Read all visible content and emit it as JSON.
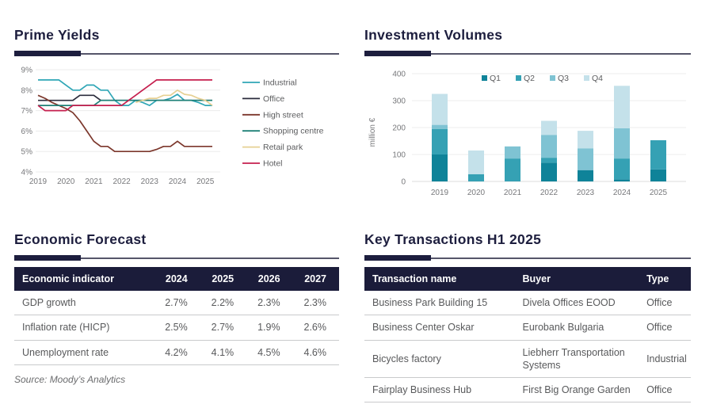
{
  "panels": {
    "prime_yields": {
      "title": "Prime Yields"
    },
    "investment_volumes": {
      "title": "Investment Volumes"
    },
    "economic_forecast": {
      "title": "Economic Forecast"
    },
    "key_transactions": {
      "title": "Key Transactions H1 2025"
    }
  },
  "chart_data": [
    {
      "id": "prime_yields",
      "type": "line",
      "title": "Prime Yields",
      "x_years": [
        "2019",
        "2020",
        "2021",
        "2022",
        "2023",
        "2024",
        "2025"
      ],
      "x_frequency": "quarterly",
      "ylim": [
        4,
        9
      ],
      "y_ticks": [
        "9%",
        "8%",
        "7%",
        "6%",
        "5%",
        "4%"
      ],
      "grid": true,
      "legend_position": "right",
      "series": [
        {
          "name": "Industrial",
          "color": "#2fa6b6",
          "values": [
            8.5,
            8.5,
            8.5,
            8.5,
            8.25,
            8.0,
            8.0,
            8.25,
            8.25,
            8.0,
            8.0,
            7.5,
            7.25,
            7.25,
            7.5,
            7.4,
            7.25,
            7.5,
            7.5,
            7.6,
            7.8,
            7.5,
            7.5,
            7.4,
            7.25,
            7.25
          ]
        },
        {
          "name": "Office",
          "color": "#2b2c3c",
          "values": [
            7.5,
            7.5,
            7.5,
            7.5,
            7.5,
            7.5,
            7.75,
            7.75,
            7.75,
            7.5,
            7.5,
            7.5,
            7.5,
            7.5,
            7.5,
            7.5,
            7.5,
            7.5,
            7.5,
            7.5,
            7.5,
            7.5,
            7.5,
            7.5,
            7.5,
            7.5
          ]
        },
        {
          "name": "High street",
          "color": "#7c372c",
          "values": [
            7.75,
            7.6,
            7.4,
            7.25,
            7.1,
            6.9,
            6.5,
            6.0,
            5.5,
            5.25,
            5.25,
            5.0,
            5.0,
            5.0,
            5.0,
            5.0,
            5.0,
            5.1,
            5.25,
            5.25,
            5.5,
            5.25,
            5.25,
            5.25,
            5.25,
            5.25
          ]
        },
        {
          "name": "Shopping centre",
          "color": "#1e8077",
          "values": [
            7.25,
            7.25,
            7.25,
            7.25,
            7.25,
            7.25,
            7.25,
            7.25,
            7.25,
            7.5,
            7.5,
            7.5,
            7.5,
            7.5,
            7.5,
            7.5,
            7.5,
            7.5,
            7.5,
            7.5,
            7.5,
            7.5,
            7.5,
            7.5,
            7.5,
            7.5
          ]
        },
        {
          "name": "Retail park",
          "color": "#e6d093",
          "values": [
            null,
            null,
            null,
            null,
            null,
            null,
            null,
            null,
            null,
            null,
            null,
            null,
            null,
            null,
            7.4,
            7.5,
            7.6,
            7.6,
            7.75,
            7.75,
            8.0,
            7.8,
            7.75,
            7.6,
            7.5,
            7.25
          ]
        },
        {
          "name": "Hotel",
          "color": "#c51f4e",
          "values": [
            7.25,
            7.0,
            7.0,
            7.0,
            7.0,
            7.25,
            7.25,
            7.25,
            7.25,
            7.25,
            7.25,
            7.25,
            7.25,
            7.5,
            7.75,
            8.0,
            8.25,
            8.5,
            8.5,
            8.5,
            8.5,
            8.5,
            8.5,
            8.5,
            8.5,
            8.5
          ]
        }
      ]
    },
    {
      "id": "investment_volumes",
      "type": "bar",
      "stacked": true,
      "title": "Investment Volumes",
      "categories": [
        "2019",
        "2020",
        "2021",
        "2022",
        "2023",
        "2024",
        "2025"
      ],
      "ylabel": "million €",
      "ylim": [
        0,
        400
      ],
      "y_ticks": [
        0,
        100,
        200,
        300,
        400
      ],
      "grid": true,
      "legend_position": "top",
      "series": [
        {
          "name": "Q1",
          "color": "#0f8399",
          "values": [
            100,
            0,
            0,
            70,
            42,
            8,
            45
          ]
        },
        {
          "name": "Q2",
          "color": "#35a1b4",
          "values": [
            95,
            27,
            85,
            18,
            0,
            77,
            108
          ]
        },
        {
          "name": "Q3",
          "color": "#7fc3d3",
          "values": [
            15,
            0,
            45,
            85,
            81,
            112,
            0
          ]
        },
        {
          "name": "Q4",
          "color": "#c4e1ea",
          "values": [
            115,
            88,
            0,
            52,
            65,
            158,
            0
          ]
        }
      ],
      "totals": [
        325,
        115,
        130,
        225,
        188,
        355,
        153
      ]
    }
  ],
  "tables": {
    "economic_forecast": {
      "headers": [
        "Economic indicator",
        "2024",
        "2025",
        "2026",
        "2027"
      ],
      "rows": [
        {
          "indicator": "GDP growth",
          "values": [
            "2.7%",
            "2.2%",
            "2.3%",
            "2.3%"
          ]
        },
        {
          "indicator": "Inflation rate (HICP)",
          "values": [
            "2.5%",
            "2.7%",
            "1.9%",
            "2.6%"
          ]
        },
        {
          "indicator": "Unemployment rate",
          "values": [
            "4.2%",
            "4.1%",
            "4.5%",
            "4.6%"
          ]
        }
      ],
      "source": "Source: Moody’s Analytics"
    },
    "key_transactions": {
      "headers": [
        "Transaction name",
        "Buyer",
        "Type"
      ],
      "rows": [
        {
          "name": "Business Park Building 15",
          "buyer": "Divela Offices EOOD",
          "type": "Office"
        },
        {
          "name": "Business Center Oskar",
          "buyer": "Eurobank Bulgaria",
          "type": "Office"
        },
        {
          "name": "Bicycles factory",
          "buyer": "Liebherr Transportation Systems",
          "type": "Industrial"
        },
        {
          "name": "Fairplay Business Hub",
          "buyer": "First Big Orange Garden",
          "type": "Office"
        }
      ]
    }
  },
  "colors": {
    "navy": "#1d1e3e",
    "header_bg": "#1b1c3a",
    "axis_text": "#77787b",
    "body_text": "#58595b",
    "row_border": "#c9cacc"
  }
}
